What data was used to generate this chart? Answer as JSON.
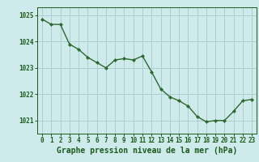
{
  "x": [
    0,
    1,
    2,
    3,
    4,
    5,
    6,
    7,
    8,
    9,
    10,
    11,
    12,
    13,
    14,
    15,
    16,
    17,
    18,
    19,
    20,
    21,
    22,
    23
  ],
  "y": [
    1024.85,
    1024.65,
    1024.65,
    1023.9,
    1023.7,
    1023.4,
    1023.2,
    1023.0,
    1023.3,
    1023.35,
    1023.3,
    1023.45,
    1022.85,
    1022.2,
    1021.9,
    1021.75,
    1021.55,
    1021.15,
    1020.95,
    1021.0,
    1021.0,
    1021.35,
    1021.75,
    1021.8
  ],
  "line_color": "#2d6a2d",
  "marker": "D",
  "marker_size": 2.0,
  "bg_color": "#ceeaea",
  "grid_color": "#aacece",
  "text_color": "#1a5c1a",
  "xlabel": "Graphe pression niveau de la mer (hPa)",
  "ylim": [
    1020.5,
    1025.3
  ],
  "yticks": [
    1021,
    1022,
    1023,
    1024,
    1025
  ],
  "xticks": [
    0,
    1,
    2,
    3,
    4,
    5,
    6,
    7,
    8,
    9,
    10,
    11,
    12,
    13,
    14,
    15,
    16,
    17,
    18,
    19,
    20,
    21,
    22,
    23
  ],
  "xlim": [
    -0.5,
    23.5
  ],
  "tick_fontsize": 5.5,
  "xlabel_fontsize": 7,
  "linewidth": 1.0
}
